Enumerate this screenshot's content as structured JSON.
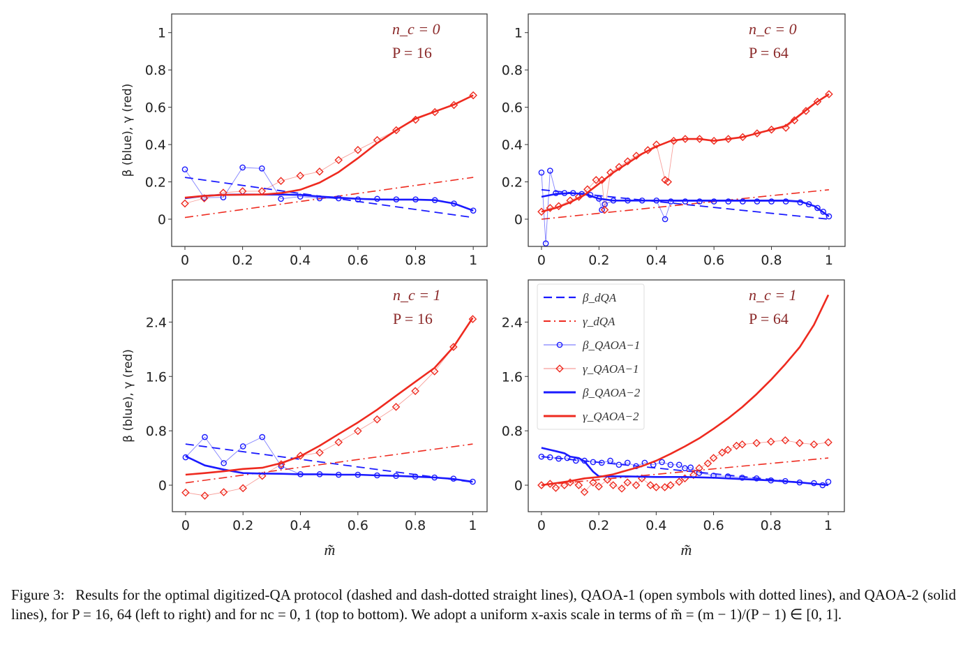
{
  "chart_data": [
    {
      "type": "line",
      "annotation": {
        "nc": "n_c = 0",
        "P": "P = 16"
      },
      "ylabel": "β (blue), γ (red)",
      "xlabel": "",
      "xlim": [
        -0.046,
        1.048
      ],
      "ylim": [
        -0.146,
        1.1
      ],
      "xticks": [
        0,
        0.2,
        0.4,
        0.6,
        0.8,
        1
      ],
      "xticklabels": [
        "0",
        "0.2",
        "0.4",
        "0.6",
        "0.8",
        "1"
      ],
      "yticks": [
        0,
        0.2,
        0.4,
        0.6,
        0.8,
        1
      ],
      "yticklabels": [
        "0",
        "0.2",
        "0.4",
        "0.6",
        "0.8",
        "1"
      ],
      "grid": false,
      "series": [
        {
          "key": "beta_dqa",
          "x": [
            0,
            1
          ],
          "y": [
            0.224,
            0.009
          ]
        },
        {
          "key": "gamma_dqa",
          "x": [
            0,
            1
          ],
          "y": [
            0.009,
            0.224
          ]
        },
        {
          "key": "beta_qaoa1",
          "x": [
            0,
            0.067,
            0.133,
            0.2,
            0.267,
            0.333,
            0.4,
            0.467,
            0.533,
            0.6,
            0.667,
            0.733,
            0.8,
            0.867,
            0.933,
            1
          ],
          "y": [
            0.267,
            0.115,
            0.117,
            0.277,
            0.272,
            0.109,
            0.121,
            0.112,
            0.112,
            0.106,
            0.109,
            0.106,
            0.106,
            0.102,
            0.084,
            0.046
          ]
        },
        {
          "key": "gamma_qaoa1",
          "x": [
            0,
            0.067,
            0.133,
            0.2,
            0.267,
            0.333,
            0.4,
            0.467,
            0.533,
            0.6,
            0.667,
            0.733,
            0.8,
            0.867,
            0.933,
            1
          ],
          "y": [
            0.084,
            0.112,
            0.142,
            0.15,
            0.15,
            0.205,
            0.233,
            0.255,
            0.317,
            0.371,
            0.424,
            0.477,
            0.533,
            0.574,
            0.612,
            0.664
          ]
        },
        {
          "key": "beta_qaoa2",
          "x": [
            0,
            0.067,
            0.133,
            0.2,
            0.267,
            0.333,
            0.4,
            0.467,
            0.533,
            0.6,
            0.667,
            0.733,
            0.8,
            0.867,
            0.933,
            1
          ],
          "y": [
            0.112,
            0.125,
            0.131,
            0.132,
            0.132,
            0.132,
            0.13,
            0.121,
            0.115,
            0.109,
            0.106,
            0.105,
            0.105,
            0.102,
            0.084,
            0.046
          ]
        },
        {
          "key": "gamma_qaoa2",
          "x": [
            0,
            0.067,
            0.133,
            0.2,
            0.267,
            0.333,
            0.4,
            0.467,
            0.533,
            0.6,
            0.667,
            0.733,
            0.8,
            0.867,
            0.933,
            1
          ],
          "y": [
            0.115,
            0.125,
            0.13,
            0.131,
            0.132,
            0.14,
            0.158,
            0.196,
            0.252,
            0.327,
            0.408,
            0.477,
            0.539,
            0.577,
            0.614,
            0.664
          ]
        }
      ]
    },
    {
      "type": "line",
      "annotation": {
        "nc": "n_c = 0",
        "P": "P = 64"
      },
      "ylabel": "",
      "xlabel": "",
      "xlim": [
        -0.046,
        1.056
      ],
      "ylim": [
        -0.146,
        1.1
      ],
      "xticks": [
        0,
        0.2,
        0.4,
        0.6,
        0.8,
        1
      ],
      "xticklabels": [
        "0",
        "0.2",
        "0.4",
        "0.6",
        "0.8",
        "1"
      ],
      "yticks": [
        0,
        0.2,
        0.4,
        0.6,
        0.8,
        1
      ],
      "yticklabels": [
        "0",
        "0.2",
        "0.4",
        "0.6",
        "0.8",
        "1"
      ],
      "grid": false,
      "series": [
        {
          "key": "beta_dqa",
          "x": [
            0,
            1
          ],
          "y": [
            0.158,
            0.0
          ]
        },
        {
          "key": "gamma_dqa",
          "x": [
            0,
            1
          ],
          "y": [
            0.0,
            0.158
          ]
        },
        {
          "key": "beta_qaoa1",
          "x": [
            0,
            0.015,
            0.03,
            0.05,
            0.08,
            0.11,
            0.14,
            0.17,
            0.2,
            0.21,
            0.22,
            0.25,
            0.3,
            0.35,
            0.4,
            0.43,
            0.45,
            0.5,
            0.55,
            0.6,
            0.65,
            0.7,
            0.75,
            0.8,
            0.85,
            0.9,
            0.93,
            0.96,
            0.98,
            1
          ],
          "y": [
            0.25,
            -0.13,
            0.26,
            0.14,
            0.14,
            0.14,
            0.135,
            0.13,
            0.11,
            0.05,
            0.08,
            0.1,
            0.1,
            0.1,
            0.1,
            0.0,
            0.095,
            0.095,
            0.095,
            0.095,
            0.095,
            0.095,
            0.095,
            0.095,
            0.095,
            0.09,
            0.08,
            0.06,
            0.04,
            0.015
          ]
        },
        {
          "key": "gamma_qaoa1",
          "x": [
            0,
            0.03,
            0.06,
            0.1,
            0.13,
            0.16,
            0.19,
            0.21,
            0.22,
            0.24,
            0.27,
            0.3,
            0.33,
            0.37,
            0.4,
            0.43,
            0.44,
            0.46,
            0.5,
            0.55,
            0.6,
            0.65,
            0.7,
            0.75,
            0.8,
            0.85,
            0.88,
            0.92,
            0.96,
            1
          ],
          "y": [
            0.04,
            0.06,
            0.07,
            0.1,
            0.12,
            0.16,
            0.21,
            0.21,
            0.05,
            0.25,
            0.28,
            0.31,
            0.34,
            0.37,
            0.4,
            0.21,
            0.2,
            0.42,
            0.43,
            0.43,
            0.42,
            0.43,
            0.44,
            0.46,
            0.48,
            0.49,
            0.53,
            0.58,
            0.63,
            0.67
          ]
        },
        {
          "key": "beta_qaoa2",
          "x": [
            0,
            0.05,
            0.1,
            0.15,
            0.2,
            0.25,
            0.3,
            0.35,
            0.4,
            0.45,
            0.5,
            0.55,
            0.6,
            0.65,
            0.7,
            0.75,
            0.8,
            0.85,
            0.9,
            0.95,
            1
          ],
          "y": [
            0.12,
            0.135,
            0.14,
            0.135,
            0.11,
            0.1,
            0.1,
            0.1,
            0.1,
            0.1,
            0.1,
            0.1,
            0.1,
            0.1,
            0.1,
            0.1,
            0.1,
            0.1,
            0.095,
            0.07,
            0.015
          ]
        },
        {
          "key": "gamma_qaoa2",
          "x": [
            0,
            0.05,
            0.1,
            0.15,
            0.2,
            0.25,
            0.3,
            0.35,
            0.4,
            0.45,
            0.5,
            0.55,
            0.6,
            0.65,
            0.7,
            0.75,
            0.8,
            0.85,
            0.9,
            0.95,
            1
          ],
          "y": [
            0.04,
            0.06,
            0.09,
            0.13,
            0.19,
            0.25,
            0.3,
            0.35,
            0.39,
            0.42,
            0.43,
            0.43,
            0.42,
            0.43,
            0.44,
            0.46,
            0.48,
            0.5,
            0.56,
            0.62,
            0.67
          ]
        }
      ]
    },
    {
      "type": "line",
      "annotation": {
        "nc": "n_c = 1",
        "P": "P = 16"
      },
      "ylabel": "β (blue), γ (red)",
      "xlabel": "m̃",
      "xlim": [
        -0.046,
        1.05
      ],
      "ylim": [
        -0.39,
        3.02
      ],
      "xticks": [
        0,
        0.2,
        0.4,
        0.6,
        0.8,
        1
      ],
      "xticklabels": [
        "0",
        "0.2",
        "0.4",
        "0.6",
        "0.8",
        "1"
      ],
      "yticks": [
        0,
        0.8,
        1.6,
        2.4
      ],
      "yticklabels": [
        "0",
        "0.8",
        "1.6",
        "2.4"
      ],
      "grid": false,
      "series": [
        {
          "key": "beta_dqa",
          "x": [
            0,
            1
          ],
          "y": [
            0.605,
            0.044
          ]
        },
        {
          "key": "gamma_dqa",
          "x": [
            0,
            1
          ],
          "y": [
            0.034,
            0.605
          ]
        },
        {
          "key": "beta_qaoa1",
          "x": [
            0,
            0.067,
            0.133,
            0.2,
            0.267,
            0.333,
            0.4,
            0.467,
            0.533,
            0.6,
            0.667,
            0.733,
            0.8,
            0.867,
            0.933,
            1
          ],
          "y": [
            0.41,
            0.708,
            0.325,
            0.571,
            0.708,
            0.28,
            0.161,
            0.161,
            0.154,
            0.154,
            0.144,
            0.137,
            0.126,
            0.113,
            0.096,
            0.051
          ]
        },
        {
          "key": "gamma_qaoa1",
          "x": [
            0,
            0.067,
            0.133,
            0.2,
            0.267,
            0.333,
            0.4,
            0.467,
            0.533,
            0.6,
            0.667,
            0.733,
            0.8,
            0.867,
            0.933,
            1
          ],
          "y": [
            -0.109,
            -0.154,
            -0.103,
            -0.044,
            0.137,
            0.308,
            0.434,
            0.479,
            0.632,
            0.797,
            0.968,
            1.152,
            1.385,
            1.675,
            2.034,
            2.444
          ]
        },
        {
          "key": "beta_qaoa2",
          "x": [
            0,
            0.067,
            0.133,
            0.2,
            0.267,
            0.333,
            0.4,
            0.467,
            0.533,
            0.6,
            0.667,
            0.733,
            0.8,
            0.867,
            0.933,
            1
          ],
          "y": [
            0.427,
            0.291,
            0.229,
            0.178,
            0.171,
            0.168,
            0.161,
            0.161,
            0.154,
            0.154,
            0.144,
            0.137,
            0.126,
            0.113,
            0.092,
            0.051
          ]
        },
        {
          "key": "gamma_qaoa2",
          "x": [
            0,
            0.067,
            0.133,
            0.2,
            0.267,
            0.333,
            0.4,
            0.467,
            0.533,
            0.6,
            0.667,
            0.733,
            0.8,
            0.867,
            0.933,
            1
          ],
          "y": [
            0.154,
            0.178,
            0.205,
            0.239,
            0.256,
            0.325,
            0.427,
            0.581,
            0.752,
            0.923,
            1.111,
            1.316,
            1.521,
            1.726,
            2.034,
            2.462
          ]
        }
      ]
    },
    {
      "type": "line",
      "annotation": {
        "nc": "n_c = 1",
        "P": "P = 64"
      },
      "ylabel": "",
      "xlabel": "m̃",
      "xlim": [
        -0.046,
        1.056
      ],
      "ylim": [
        -0.39,
        3.02
      ],
      "xticks": [
        0,
        0.2,
        0.4,
        0.6,
        0.8,
        1
      ],
      "xticklabels": [
        "0",
        "0.2",
        "0.4",
        "0.6",
        "0.8",
        "1"
      ],
      "yticks": [
        0,
        0.8,
        1.6,
        2.4
      ],
      "yticklabels": [
        "0",
        "0.8",
        "1.6",
        "2.4"
      ],
      "grid": false,
      "legend_position": "top-left",
      "legend": [
        {
          "key": "beta_dqa",
          "label": "β_dQA"
        },
        {
          "key": "gamma_dqa",
          "label": "γ_dQA"
        },
        {
          "key": "beta_qaoa1",
          "label": "β_QAOA−1"
        },
        {
          "key": "gamma_qaoa1",
          "label": "γ_QAOA−1"
        },
        {
          "key": "beta_qaoa2",
          "label": "β_QAOA−2"
        },
        {
          "key": "gamma_qaoa2",
          "label": "γ_QAOA−2"
        }
      ],
      "series": [
        {
          "key": "beta_dqa",
          "x": [
            0,
            1
          ],
          "y": [
            0.42,
            0.0
          ]
        },
        {
          "key": "gamma_dqa",
          "x": [
            0,
            1
          ],
          "y": [
            0.0,
            0.4
          ]
        },
        {
          "key": "beta_qaoa1",
          "x": [
            0,
            0.03,
            0.06,
            0.09,
            0.12,
            0.15,
            0.18,
            0.21,
            0.24,
            0.27,
            0.3,
            0.33,
            0.36,
            0.39,
            0.42,
            0.45,
            0.48,
            0.5,
            0.52,
            0.55,
            0.6,
            0.65,
            0.7,
            0.75,
            0.8,
            0.85,
            0.9,
            0.95,
            0.98,
            1
          ],
          "y": [
            0.42,
            0.41,
            0.39,
            0.4,
            0.36,
            0.36,
            0.34,
            0.33,
            0.36,
            0.3,
            0.33,
            0.28,
            0.33,
            0.3,
            0.34,
            0.3,
            0.3,
            0.25,
            0.26,
            0.18,
            0.14,
            0.13,
            0.11,
            0.1,
            0.07,
            0.06,
            0.04,
            0.03,
            0.0,
            0.05
          ]
        },
        {
          "key": "gamma_qaoa1",
          "x": [
            0,
            0.03,
            0.05,
            0.08,
            0.1,
            0.13,
            0.15,
            0.18,
            0.2,
            0.23,
            0.25,
            0.28,
            0.3,
            0.33,
            0.35,
            0.38,
            0.4,
            0.43,
            0.45,
            0.48,
            0.5,
            0.53,
            0.55,
            0.58,
            0.6,
            0.63,
            0.65,
            0.68,
            0.7,
            0.75,
            0.8,
            0.85,
            0.9,
            0.95,
            1
          ],
          "y": [
            0.0,
            0.02,
            -0.04,
            0.0,
            0.04,
            0.0,
            -0.1,
            0.04,
            -0.02,
            0.08,
            0.0,
            -0.05,
            0.04,
            0.0,
            0.1,
            0.0,
            -0.03,
            -0.03,
            0.0,
            0.05,
            0.1,
            0.15,
            0.25,
            0.32,
            0.4,
            0.48,
            0.52,
            0.58,
            0.6,
            0.62,
            0.64,
            0.66,
            0.62,
            0.6,
            0.63
          ]
        },
        {
          "key": "beta_qaoa2",
          "x": [
            0,
            0.03,
            0.05,
            0.08,
            0.1,
            0.13,
            0.15,
            0.18,
            0.2,
            0.3,
            0.4,
            0.5,
            0.6,
            0.7,
            0.8,
            0.9,
            1
          ],
          "y": [
            0.55,
            0.52,
            0.5,
            0.47,
            0.42,
            0.4,
            0.35,
            0.2,
            0.13,
            0.13,
            0.12,
            0.12,
            0.11,
            0.09,
            0.07,
            0.04,
            0.0
          ]
        },
        {
          "key": "gamma_qaoa2",
          "x": [
            0,
            0.05,
            0.1,
            0.15,
            0.2,
            0.25,
            0.3,
            0.35,
            0.4,
            0.45,
            0.5,
            0.55,
            0.6,
            0.65,
            0.7,
            0.75,
            0.8,
            0.85,
            0.9,
            0.95,
            1
          ],
          "y": [
            0.0,
            0.03,
            0.06,
            0.1,
            0.12,
            0.16,
            0.22,
            0.28,
            0.36,
            0.46,
            0.57,
            0.69,
            0.83,
            0.98,
            1.15,
            1.34,
            1.55,
            1.78,
            2.03,
            2.36,
            2.8
          ]
        }
      ]
    }
  ],
  "colors": {
    "blue": "#1a1aff",
    "red": "#ee2a1f",
    "annotation": "#8b2a2a"
  },
  "caption": {
    "label": "Figure 3:",
    "text": "Results for the optimal digitized-QA protocol (dashed and dash-dotted straight lines), QAOA-1 (open symbols with dotted lines), and QAOA-2 (solid lines), for P = 16, 64 (left to right) and for nc = 0, 1 (top to bottom). We adopt a uniform x-axis scale in terms of m̃ = (m − 1)/(P − 1) ∈ [0, 1]."
  }
}
